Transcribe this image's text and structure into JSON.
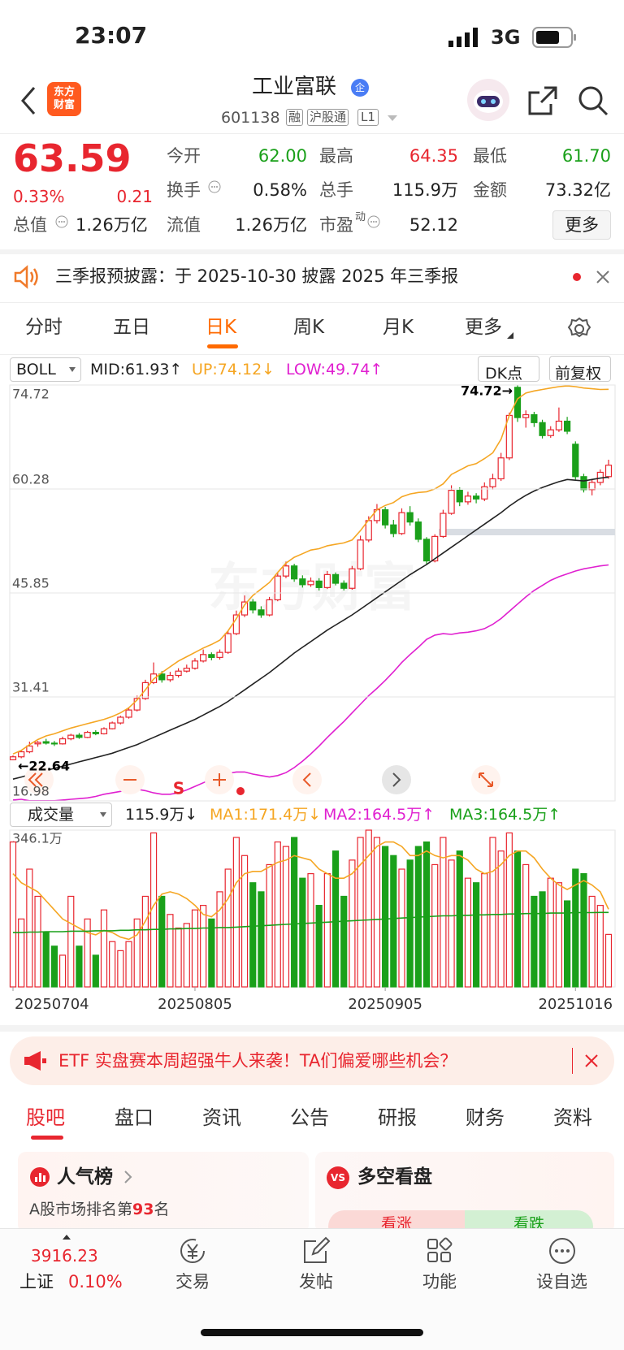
{
  "status_bar": {
    "time": "23:07",
    "network": "3G"
  },
  "header": {
    "logo": [
      "东方",
      "财富"
    ],
    "title": "工业富联",
    "badge": "企",
    "code": "601138",
    "tags": [
      "融",
      "沪股通",
      "L1"
    ]
  },
  "quote": {
    "price": "63.59",
    "change_pct": "0.33%",
    "change": "0.21",
    "fields": [
      {
        "label": "今开",
        "value": "62.00"
      },
      {
        "label": "最高",
        "value": "64.35"
      },
      {
        "label": "最低",
        "value": "61.70"
      },
      {
        "label": "换手",
        "value": "0.58%"
      },
      {
        "label": "总手",
        "value": "115.9万"
      },
      {
        "label": "金额",
        "value": "73.32亿"
      },
      {
        "label": "总值",
        "value": "1.26万亿"
      },
      {
        "label": "流值",
        "value": "1.26万亿"
      },
      {
        "label": "市盈",
        "sup": "动",
        "value": "52.12"
      }
    ],
    "more": "更多"
  },
  "notice": "三季报预披露：于 2025-10-30 披露 2025 年三季报",
  "tabs": [
    "分时",
    "五日",
    "日K",
    "周K",
    "月K",
    "更多"
  ],
  "kline": {
    "indicator": "BOLL",
    "mid": "MID:61.93↑",
    "up": "UP:74.12↓",
    "low": "LOW:49.74↑",
    "dk": "DK点",
    "adjust": "前复权",
    "watermark": "东方财富",
    "signal": "S",
    "high_label": "74.72→",
    "low_label": "←22.64",
    "ylim": [
      16.98,
      74.72
    ],
    "yticks": [
      16.98,
      31.41,
      45.85,
      60.28,
      74.72
    ],
    "grid": true,
    "colors": {
      "up": "#e8262f",
      "down": "#1aa01a",
      "mid": "#222222",
      "upper": "#f5a623",
      "lower": "#e020d0"
    },
    "candles": [
      [
        22.7,
        23.3,
        22.64,
        23.1
      ],
      [
        23.1,
        24.0,
        22.9,
        23.8
      ],
      [
        23.8,
        25.2,
        23.6,
        24.6
      ],
      [
        24.9,
        25.3,
        24.5,
        25.1
      ],
      [
        25.2,
        25.6,
        24.8,
        25.0
      ],
      [
        25.0,
        25.3,
        24.6,
        24.9
      ],
      [
        24.9,
        25.9,
        24.8,
        25.6
      ],
      [
        25.6,
        26.3,
        25.4,
        26.1
      ],
      [
        26.1,
        26.4,
        25.6,
        25.8
      ],
      [
        25.8,
        26.7,
        25.7,
        26.5
      ],
      [
        26.5,
        26.8,
        26.1,
        26.3
      ],
      [
        26.3,
        27.2,
        26.2,
        27.0
      ],
      [
        27.0,
        28.0,
        26.9,
        27.8
      ],
      [
        27.8,
        28.8,
        27.6,
        28.6
      ],
      [
        28.6,
        30.0,
        28.4,
        29.6
      ],
      [
        29.6,
        31.6,
        29.4,
        31.2
      ],
      [
        31.2,
        33.8,
        31.0,
        33.4
      ],
      [
        33.4,
        36.2,
        33.2,
        34.6
      ],
      [
        34.6,
        35.0,
        33.4,
        33.8
      ],
      [
        33.8,
        34.9,
        33.5,
        34.4
      ],
      [
        34.4,
        35.4,
        34.1,
        35.0
      ],
      [
        35.0,
        35.9,
        34.8,
        35.4
      ],
      [
        35.4,
        36.8,
        35.2,
        36.4
      ],
      [
        36.4,
        38.0,
        36.2,
        37.3
      ],
      [
        37.3,
        37.6,
        36.5,
        36.9
      ],
      [
        36.9,
        38.0,
        36.6,
        37.6
      ],
      [
        37.6,
        40.6,
        37.4,
        40.2
      ],
      [
        40.2,
        43.4,
        40.0,
        42.8
      ],
      [
        42.8,
        45.5,
        42.5,
        44.6
      ],
      [
        44.6,
        45.0,
        43.0,
        43.5
      ],
      [
        43.5,
        44.0,
        42.4,
        42.8
      ],
      [
        42.8,
        45.3,
        42.6,
        44.9
      ],
      [
        44.9,
        48.6,
        44.7,
        48.2
      ],
      [
        48.2,
        50.2,
        47.9,
        49.6
      ],
      [
        49.6,
        49.9,
        47.4,
        47.8
      ],
      [
        47.8,
        48.3,
        46.6,
        47.0
      ],
      [
        47.0,
        48.0,
        46.7,
        47.5
      ],
      [
        47.5,
        47.9,
        46.2,
        46.6
      ],
      [
        46.6,
        48.9,
        46.4,
        48.4
      ],
      [
        48.4,
        48.7,
        46.9,
        47.2
      ],
      [
        47.2,
        47.6,
        46.2,
        46.5
      ],
      [
        46.5,
        49.6,
        46.3,
        49.2
      ],
      [
        49.2,
        53.8,
        49.0,
        53.2
      ],
      [
        53.2,
        56.5,
        52.9,
        55.9
      ],
      [
        55.9,
        58.2,
        55.5,
        57.4
      ],
      [
        57.4,
        57.8,
        54.8,
        55.3
      ],
      [
        55.3,
        56.0,
        53.6,
        54.1
      ],
      [
        54.1,
        57.6,
        53.9,
        57.0
      ],
      [
        57.0,
        57.9,
        55.2,
        55.7
      ],
      [
        55.7,
        56.2,
        52.9,
        53.3
      ],
      [
        53.3,
        53.6,
        49.8,
        50.3
      ],
      [
        50.3,
        54.0,
        50.1,
        53.7
      ],
      [
        53.7,
        57.4,
        53.5,
        56.9
      ],
      [
        56.9,
        60.8,
        56.7,
        60.1
      ],
      [
        60.1,
        60.5,
        57.9,
        58.5
      ],
      [
        58.5,
        59.9,
        58.1,
        59.3
      ],
      [
        59.3,
        59.7,
        58.3,
        58.9
      ],
      [
        58.9,
        61.2,
        58.6,
        60.6
      ],
      [
        60.6,
        62.4,
        60.2,
        61.7
      ],
      [
        61.7,
        65.3,
        61.4,
        64.6
      ],
      [
        64.6,
        70.9,
        64.3,
        70.5
      ],
      [
        74.4,
        74.72,
        69.6,
        70.2
      ],
      [
        70.2,
        71.2,
        68.8,
        70.6
      ],
      [
        70.6,
        71.0,
        68.9,
        69.5
      ],
      [
        69.5,
        69.9,
        67.3,
        67.7
      ],
      [
        67.7,
        69.0,
        67.4,
        68.5
      ],
      [
        68.5,
        71.6,
        68.2,
        69.7
      ],
      [
        69.7,
        70.3,
        67.9,
        68.3
      ],
      [
        66.5,
        66.9,
        61.6,
        62.0
      ],
      [
        62.0,
        62.4,
        59.8,
        60.2
      ],
      [
        60.2,
        61.7,
        59.4,
        61.2
      ],
      [
        61.2,
        63.0,
        60.8,
        62.6
      ],
      [
        62.0,
        64.35,
        61.7,
        63.59
      ]
    ],
    "boll_mid": [
      20.0,
      20.3,
      20.6,
      20.9,
      21.2,
      21.5,
      21.8,
      22.1,
      22.4,
      22.7,
      23.0,
      23.3,
      23.6,
      24.0,
      24.4,
      24.8,
      25.3,
      25.8,
      26.3,
      26.8,
      27.3,
      27.8,
      28.3,
      28.9,
      29.5,
      30.1,
      30.8,
      31.6,
      32.4,
      33.2,
      34.0,
      34.8,
      35.7,
      36.6,
      37.5,
      38.3,
      39.1,
      39.9,
      40.7,
      41.4,
      42.1,
      42.8,
      43.6,
      44.4,
      45.2,
      46.0,
      46.8,
      47.6,
      48.4,
      49.1,
      49.8,
      50.6,
      51.4,
      52.2,
      53.0,
      53.8,
      54.6,
      55.4,
      56.2,
      57.0,
      57.9,
      58.7,
      59.4,
      60.0,
      60.5,
      60.9,
      61.3,
      61.6,
      61.5,
      61.4,
      61.6,
      61.8,
      61.93
    ],
    "boll_up": [
      23.5,
      24.0,
      24.8,
      25.5,
      26.0,
      26.3,
      26.7,
      27.1,
      27.4,
      27.7,
      28.0,
      28.3,
      28.7,
      29.2,
      29.9,
      31.0,
      32.4,
      33.9,
      34.8,
      35.6,
      36.4,
      37.0,
      37.6,
      38.2,
      38.7,
      39.3,
      40.6,
      42.3,
      44.2,
      45.5,
      46.4,
      47.3,
      48.7,
      50.0,
      50.8,
      51.3,
      51.8,
      52.0,
      52.4,
      52.6,
      52.8,
      53.2,
      54.5,
      56.0,
      57.4,
      58.0,
      58.4,
      59.2,
      59.6,
      59.8,
      59.9,
      60.3,
      61.0,
      62.3,
      62.9,
      63.5,
      63.8,
      64.5,
      65.3,
      67.2,
      70.5,
      72.8,
      73.6,
      73.9,
      74.1,
      74.3,
      74.5,
      74.6,
      74.5,
      74.3,
      74.2,
      74.1,
      74.12
    ],
    "boll_low": [
      17.1,
      17.2,
      17.0,
      17.0,
      17.0,
      17.0,
      17.1,
      17.2,
      17.3,
      17.4,
      17.6,
      17.9,
      18.1,
      18.3,
      18.5,
      18.6,
      18.4,
      18.1,
      17.9,
      17.9,
      18.1,
      18.5,
      19.0,
      19.5,
      20.0,
      20.5,
      20.8,
      21.0,
      21.0,
      20.7,
      20.5,
      20.3,
      20.5,
      20.9,
      21.6,
      22.5,
      23.5,
      24.6,
      25.8,
      26.9,
      28.0,
      29.2,
      30.4,
      31.6,
      32.6,
      33.7,
      34.9,
      36.2,
      37.3,
      38.3,
      39.4,
      40.0,
      40.2,
      40.1,
      40.3,
      40.4,
      40.6,
      40.9,
      41.5,
      42.3,
      43.3,
      44.3,
      45.3,
      46.2,
      46.9,
      47.6,
      48.1,
      48.5,
      48.9,
      49.2,
      49.4,
      49.6,
      49.74
    ]
  },
  "volume": {
    "label": "成交量",
    "current": "115.9万↓",
    "ma1": "MA1:171.4万↓",
    "ma2": "MA2:164.5万↑",
    "ma3": "MA3:164.5万↑",
    "ylim": [
      0,
      346.1
    ],
    "yticks": [
      {
        "value": 346.1,
        "label": "346.1万"
      }
    ],
    "colors": {
      "ma1": "#f5a623",
      "ma3": "#1aa01a"
    },
    "categories": [
      "20250704",
      null,
      null,
      null,
      null,
      null,
      null,
      null,
      null,
      null,
      null,
      null,
      null,
      null,
      null,
      null,
      null,
      null,
      null,
      null,
      null,
      null,
      "20250805",
      null,
      null,
      null,
      null,
      null,
      null,
      null,
      null,
      null,
      null,
      null,
      null,
      null,
      null,
      null,
      null,
      null,
      null,
      null,
      null,
      null,
      null,
      "20250905",
      null,
      null,
      null,
      null,
      null,
      null,
      null,
      null,
      null,
      null,
      null,
      null,
      null,
      null,
      null,
      null,
      null,
      null,
      null,
      null,
      null,
      null,
      "20251016",
      null,
      null,
      null,
      null
    ],
    "values": [
      320,
      150,
      260,
      200,
      120,
      90,
      70,
      200,
      90,
      150,
      70,
      170,
      100,
      80,
      100,
      150,
      200,
      340,
      200,
      160,
      130,
      140,
      170,
      180,
      150,
      210,
      260,
      330,
      290,
      230,
      210,
      270,
      320,
      310,
      330,
      240,
      250,
      180,
      250,
      300,
      200,
      280,
      330,
      346.1,
      330,
      310,
      290,
      260,
      280,
      310,
      320,
      270,
      330,
      280,
      300,
      240,
      230,
      250,
      330,
      300,
      340,
      300,
      270,
      200,
      210,
      240,
      230,
      190,
      260,
      250,
      200,
      180,
      115.9
    ],
    "ma1_line": [
      250,
      230,
      220,
      210,
      190,
      170,
      150,
      140,
      130,
      120,
      115,
      125,
      120,
      110,
      105,
      115,
      145,
      180,
      205,
      210,
      205,
      195,
      180,
      160,
      155,
      170,
      195,
      230,
      250,
      255,
      255,
      265,
      275,
      280,
      290,
      285,
      280,
      260,
      250,
      240,
      240,
      250,
      270,
      290,
      310,
      320,
      320,
      310,
      290,
      290,
      300,
      290,
      285,
      290,
      290,
      280,
      260,
      250,
      255,
      270,
      290,
      300,
      300,
      285,
      260,
      240,
      225,
      215,
      225,
      235,
      225,
      210,
      171.4
    ],
    "ma3_line": [
      120,
      120,
      121,
      121,
      122,
      122,
      122,
      123,
      123,
      123,
      124,
      124,
      124,
      125,
      125,
      126,
      126,
      127,
      127,
      128,
      128,
      129,
      129,
      130,
      130,
      131,
      131,
      132,
      133,
      134,
      135,
      136,
      137,
      138,
      139,
      140,
      141,
      142,
      143,
      144,
      145,
      146,
      147,
      148,
      149,
      150,
      151,
      152,
      153,
      154,
      155,
      156,
      157,
      157,
      158,
      158,
      159,
      159,
      160,
      160,
      161,
      161,
      162,
      162,
      162,
      163,
      163,
      163,
      164,
      164,
      164,
      164.5,
      164.5
    ]
  },
  "ad": "ETF 实盘赛本周超强牛人来袭！TA们偏爱哪些机会？",
  "sub_tabs": [
    "股吧",
    "盘口",
    "资讯",
    "公告",
    "研报",
    "财务",
    "资料"
  ],
  "cards": {
    "popular": {
      "title": "人气榜",
      "prefix": "A股市场排名第",
      "rank": "93",
      "suffix": "名"
    },
    "bullbear": {
      "icon": "VS",
      "title": "多空看盘",
      "bull": "看涨",
      "bear": "看跌"
    }
  },
  "bottom_nav": {
    "index_value": "3916.23",
    "index_name": "上证",
    "index_change": "0.10%",
    "items": [
      "交易",
      "发帖",
      "功能",
      "设自选"
    ]
  }
}
